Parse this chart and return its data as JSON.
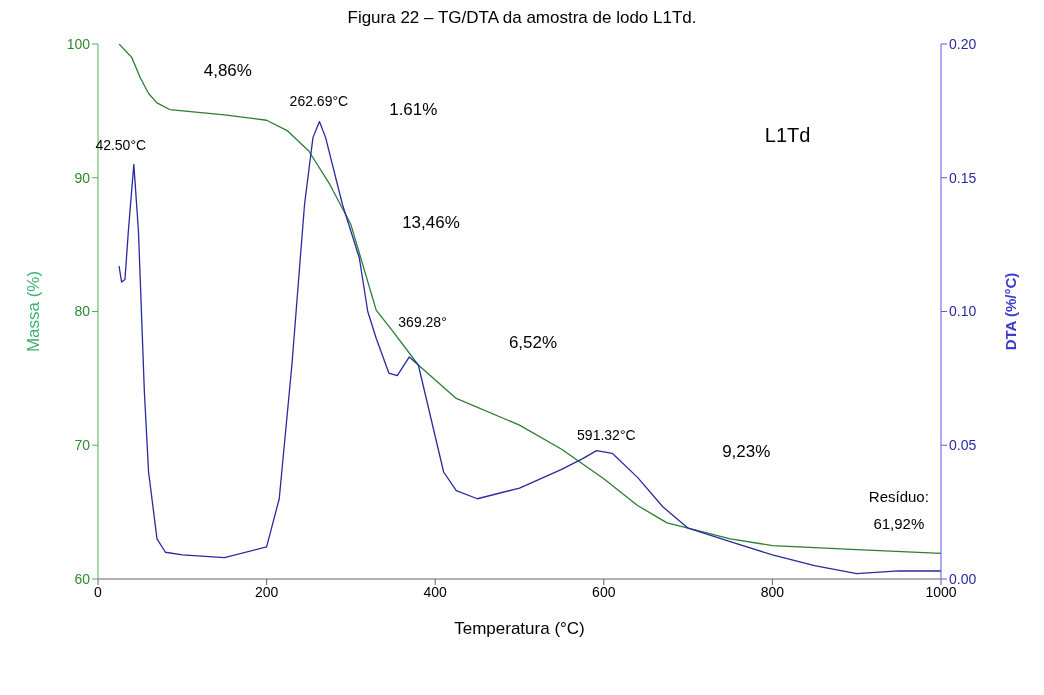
{
  "chart_data": {
    "type": "line",
    "title": "Figura 22 – TG/DTA da amostra de lodo L1Td.",
    "xlabel": "Temperatura (°C)",
    "ylabel": "Massa (%)",
    "y2label": "DTA (%/°C)",
    "xlim": [
      0,
      1000
    ],
    "xticks": [
      0,
      200,
      400,
      600,
      800,
      1000
    ],
    "ylim": [
      60,
      100
    ],
    "yticks": [
      60,
      70,
      80,
      90,
      100
    ],
    "y2lim": [
      0,
      0.2
    ],
    "y2ticks": [
      {
        "value": 0,
        "label": "0.00"
      },
      {
        "value": 0.05,
        "label": "0.05"
      },
      {
        "value": 0.1,
        "label": "0.10"
      },
      {
        "value": 0.15,
        "label": "0.15"
      },
      {
        "value": 0.2,
        "label": "0.20"
      }
    ],
    "grid": false,
    "legend": false,
    "marker": "none",
    "line_style": "solid",
    "series": [
      {
        "color": "#2e7d32",
        "x": [
          25,
          40,
          50,
          60,
          70,
          85,
          150,
          200,
          225,
          250,
          275,
          300,
          330,
          350,
          380,
          425,
          500,
          550,
          600,
          640,
          675,
          700,
          750,
          800,
          900,
          1000
        ],
        "values": [
          100,
          99.0,
          97.5,
          96.3,
          95.6,
          95.1,
          94.7,
          94.3,
          93.5,
          92.0,
          89.5,
          86.5,
          80.1,
          78.5,
          76.0,
          73.5,
          71.5,
          69.7,
          67.5,
          65.5,
          64.2,
          63.8,
          63.0,
          62.5,
          62.2,
          61.92
        ]
      },
      {
        "color": "#2a2aa0",
        "axis": "y2",
        "x": [
          25,
          28,
          32,
          36,
          42.5,
          48,
          55,
          60,
          70,
          80,
          100,
          150,
          200,
          215,
          230,
          245,
          255,
          262.69,
          270,
          290,
          310,
          320,
          330,
          345,
          355,
          369.28,
          380,
          395,
          410,
          425,
          450,
          500,
          550,
          575,
          591.32,
          610,
          640,
          670,
          700,
          750,
          800,
          850,
          900,
          950,
          1000
        ],
        "values": [
          0.117,
          0.111,
          0.112,
          0.13,
          0.155,
          0.13,
          0.07,
          0.04,
          0.015,
          0.01,
          0.009,
          0.008,
          0.012,
          0.03,
          0.08,
          0.14,
          0.165,
          0.171,
          0.165,
          0.14,
          0.12,
          0.1,
          0.09,
          0.077,
          0.076,
          0.083,
          0.08,
          0.06,
          0.04,
          0.033,
          0.03,
          0.034,
          0.041,
          0.045,
          0.048,
          0.047,
          0.038,
          0.027,
          0.019,
          0.014,
          0.009,
          0.005,
          0.002,
          0.003,
          0.003
        ]
      }
    ],
    "annotations": [
      "42.50°C",
      "262.69°C",
      "369.28°",
      "591.32°C",
      "4,86%",
      "1.61%",
      "13,46%",
      "6,52%",
      "9,23%",
      "L1Td",
      "Resíduo:",
      "61,92%"
    ]
  }
}
